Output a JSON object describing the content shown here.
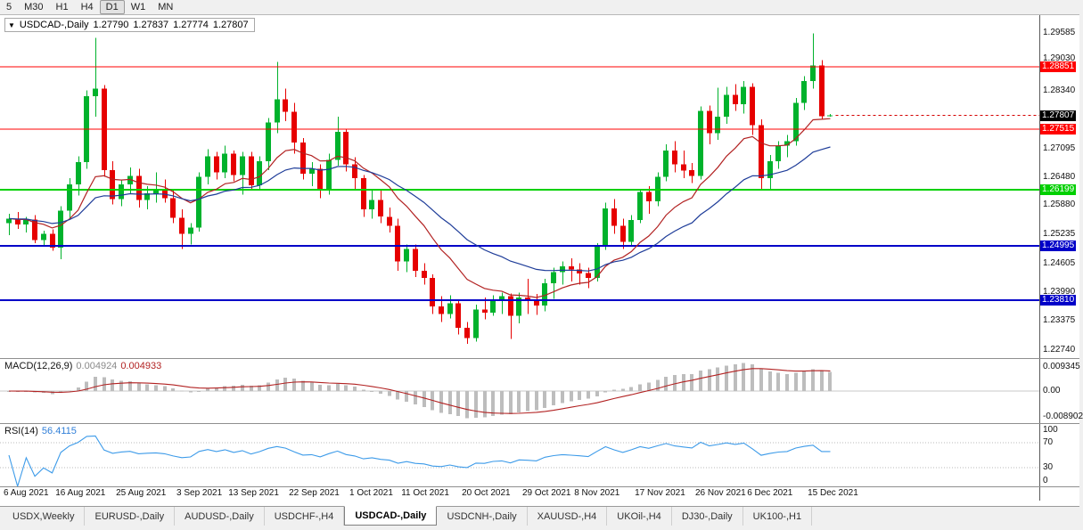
{
  "toolbar": {
    "timeframes": [
      {
        "label": "5",
        "active": false
      },
      {
        "label": "M30",
        "active": false
      },
      {
        "label": "H1",
        "active": false
      },
      {
        "label": "H4",
        "active": false
      },
      {
        "label": "D1",
        "active": true
      },
      {
        "label": "W1",
        "active": false
      },
      {
        "label": "MN",
        "active": false
      }
    ]
  },
  "chart": {
    "title": "USDCAD-,Daily",
    "open": "1.27790",
    "high": "1.27837",
    "low": "1.27774",
    "close": "1.27807"
  },
  "indicators": {
    "macd": {
      "name": "MACD(12,26,9)",
      "value_main": "0.004924",
      "value_signal": "0.004933",
      "axis_labels": [
        "0.009345",
        "0.00",
        "-0.008902"
      ]
    },
    "rsi": {
      "name": "RSI(14)",
      "value": "56.4115",
      "axis_labels": [
        "100",
        "70",
        "30",
        "0"
      ],
      "levels": [
        70,
        30
      ]
    }
  },
  "tabs": [
    {
      "label": "USDX,Weekly",
      "active": false
    },
    {
      "label": "EURUSD-,Daily",
      "active": false
    },
    {
      "label": "AUDUSD-,Daily",
      "active": false
    },
    {
      "label": "USDCHF-,H4",
      "active": false
    },
    {
      "label": "USDCAD-,Daily",
      "active": true
    },
    {
      "label": "USDCNH-,Daily",
      "active": false
    },
    {
      "label": "XAUUSD-,H4",
      "active": false
    },
    {
      "label": "UKOil-,H4",
      "active": false
    },
    {
      "label": "DJ30-,Daily",
      "active": false
    },
    {
      "label": "UK100-,H1",
      "active": false
    }
  ],
  "chart_data": {
    "type": "candlestick",
    "symbol": "USDCAD-",
    "timeframe": "Daily",
    "current_bar": {
      "open": 1.2779,
      "high": 1.27837,
      "low": 1.27774,
      "close": 1.27807
    },
    "current_price": 1.27807,
    "ylim": [
      1.22568,
      1.2997
    ],
    "y_ticks": [
      1.29585,
      1.2903,
      1.2834,
      1.27095,
      1.2648,
      1.2588,
      1.25235,
      1.24605,
      1.2399,
      1.23375,
      1.2274
    ],
    "levels": [
      {
        "price": 1.28851,
        "color": "#ff0000",
        "width": 1
      },
      {
        "price": 1.27515,
        "color": "#ff0000",
        "width": 1
      },
      {
        "price": 1.26199,
        "color": "#00d000",
        "width": 2
      },
      {
        "price": 1.24995,
        "color": "#0000c8",
        "width": 2
      },
      {
        "price": 1.2381,
        "color": "#0000c8",
        "width": 2
      }
    ],
    "x_labels": [
      {
        "bar": 0,
        "text": "6 Aug 2021"
      },
      {
        "bar": 6,
        "text": "16 Aug 2021"
      },
      {
        "bar": 13,
        "text": "25 Aug 2021"
      },
      {
        "bar": 20,
        "text": "3 Sep 2021"
      },
      {
        "bar": 26,
        "text": "13 Sep 2021"
      },
      {
        "bar": 33,
        "text": "22 Sep 2021"
      },
      {
        "bar": 40,
        "text": "1 Oct 2021"
      },
      {
        "bar": 46,
        "text": "11 Oct 2021"
      },
      {
        "bar": 53,
        "text": "20 Oct 2021"
      },
      {
        "bar": 60,
        "text": "29 Oct 2021"
      },
      {
        "bar": 66,
        "text": "8 Nov 2021"
      },
      {
        "bar": 73,
        "text": "17 Nov 2021"
      },
      {
        "bar": 80,
        "text": "26 Nov 2021"
      },
      {
        "bar": 86,
        "text": "6 Dec 2021"
      },
      {
        "bar": 93,
        "text": "15 Dec 2021"
      }
    ],
    "dates": [
      "2021-08-06",
      "2021-08-09",
      "2021-08-10",
      "2021-08-11",
      "2021-08-12",
      "2021-08-13",
      "2021-08-16",
      "2021-08-17",
      "2021-08-18",
      "2021-08-19",
      "2021-08-20",
      "2021-08-23",
      "2021-08-24",
      "2021-08-25",
      "2021-08-26",
      "2021-08-27",
      "2021-08-30",
      "2021-08-31",
      "2021-09-01",
      "2021-09-02",
      "2021-09-03",
      "2021-09-06",
      "2021-09-07",
      "2021-09-08",
      "2021-09-09",
      "2021-09-10",
      "2021-09-13",
      "2021-09-14",
      "2021-09-15",
      "2021-09-16",
      "2021-09-17",
      "2021-09-20",
      "2021-09-21",
      "2021-09-22",
      "2021-09-23",
      "2021-09-24",
      "2021-09-27",
      "2021-09-28",
      "2021-09-29",
      "2021-09-30",
      "2021-10-01",
      "2021-10-04",
      "2021-10-05",
      "2021-10-06",
      "2021-10-07",
      "2021-10-08",
      "2021-10-11",
      "2021-10-12",
      "2021-10-13",
      "2021-10-14",
      "2021-10-15",
      "2021-10-18",
      "2021-10-19",
      "2021-10-20",
      "2021-10-21",
      "2021-10-22",
      "2021-10-25",
      "2021-10-26",
      "2021-10-27",
      "2021-10-28",
      "2021-10-29",
      "2021-11-01",
      "2021-11-02",
      "2021-11-03",
      "2021-11-04",
      "2021-11-05",
      "2021-11-08",
      "2021-11-09",
      "2021-11-10",
      "2021-11-11",
      "2021-11-12",
      "2021-11-15",
      "2021-11-16",
      "2021-11-17",
      "2021-11-18",
      "2021-11-19",
      "2021-11-22",
      "2021-11-23",
      "2021-11-24",
      "2021-11-25",
      "2021-11-26",
      "2021-11-29",
      "2021-11-30",
      "2021-12-01",
      "2021-12-02",
      "2021-12-03",
      "2021-12-06",
      "2021-12-07",
      "2021-12-08",
      "2021-12-09",
      "2021-12-10",
      "2021-12-13",
      "2021-12-14",
      "2021-12-15",
      "2021-12-16",
      "2021-12-17"
    ],
    "candles": [
      [
        1.2548,
        1.2568,
        1.2522,
        1.2558
      ],
      [
        1.2558,
        1.2572,
        1.2536,
        1.2545
      ],
      [
        1.2545,
        1.2562,
        1.2528,
        1.2556
      ],
      [
        1.2556,
        1.2565,
        1.2505,
        1.2512
      ],
      [
        1.2512,
        1.2532,
        1.2498,
        1.2525
      ],
      [
        1.2525,
        1.2535,
        1.2488,
        1.2495
      ],
      [
        1.2495,
        1.2585,
        1.247,
        1.2575
      ],
      [
        1.2575,
        1.2645,
        1.2558,
        1.2632
      ],
      [
        1.2632,
        1.2692,
        1.2608,
        1.268
      ],
      [
        1.268,
        1.2835,
        1.2665,
        1.2822
      ],
      [
        1.2822,
        1.2948,
        1.2778,
        1.2838
      ],
      [
        1.2838,
        1.2846,
        1.2648,
        1.2662
      ],
      [
        1.2662,
        1.2682,
        1.2588,
        1.26
      ],
      [
        1.26,
        1.2642,
        1.2585,
        1.2632
      ],
      [
        1.2632,
        1.2668,
        1.2612,
        1.265
      ],
      [
        1.265,
        1.2665,
        1.2582,
        1.2598
      ],
      [
        1.2598,
        1.2628,
        1.2578,
        1.2612
      ],
      [
        1.2612,
        1.2658,
        1.2592,
        1.262
      ],
      [
        1.262,
        1.2642,
        1.2592,
        1.2602
      ],
      [
        1.2602,
        1.2618,
        1.2548,
        1.256
      ],
      [
        1.256,
        1.2578,
        1.2492,
        1.2525
      ],
      [
        1.2525,
        1.2548,
        1.2502,
        1.2538
      ],
      [
        1.2538,
        1.2658,
        1.253,
        1.2648
      ],
      [
        1.2648,
        1.2708,
        1.2632,
        1.2692
      ],
      [
        1.2692,
        1.2702,
        1.2642,
        1.2658
      ],
      [
        1.2658,
        1.2715,
        1.2645,
        1.2698
      ],
      [
        1.2698,
        1.2705,
        1.2638,
        1.2652
      ],
      [
        1.2652,
        1.2702,
        1.261,
        1.2692
      ],
      [
        1.2692,
        1.2702,
        1.2618,
        1.263
      ],
      [
        1.263,
        1.2692,
        1.2618,
        1.2682
      ],
      [
        1.2682,
        1.2775,
        1.2662,
        1.2765
      ],
      [
        1.2765,
        1.2896,
        1.2742,
        1.2815
      ],
      [
        1.2815,
        1.2838,
        1.2768,
        1.2788
      ],
      [
        1.2788,
        1.2808,
        1.2698,
        1.2722
      ],
      [
        1.2722,
        1.2732,
        1.2642,
        1.2655
      ],
      [
        1.2655,
        1.268,
        1.2628,
        1.2665
      ],
      [
        1.2665,
        1.2675,
        1.2602,
        1.2618
      ],
      [
        1.2618,
        1.2698,
        1.261,
        1.2685
      ],
      [
        1.2685,
        1.2778,
        1.2672,
        1.2745
      ],
      [
        1.2745,
        1.2752,
        1.266,
        1.2675
      ],
      [
        1.2675,
        1.269,
        1.262,
        1.2645
      ],
      [
        1.2645,
        1.2652,
        1.2562,
        1.2578
      ],
      [
        1.2578,
        1.2618,
        1.2558,
        1.2598
      ],
      [
        1.2598,
        1.2622,
        1.2548,
        1.2562
      ],
      [
        1.2562,
        1.2582,
        1.2528,
        1.2542
      ],
      [
        1.2542,
        1.2558,
        1.2445,
        1.2465
      ],
      [
        1.2465,
        1.2502,
        1.2442,
        1.2492
      ],
      [
        1.2492,
        1.2502,
        1.2432,
        1.2445
      ],
      [
        1.2445,
        1.2462,
        1.2415,
        1.243
      ],
      [
        1.243,
        1.2438,
        1.2352,
        1.2368
      ],
      [
        1.2368,
        1.239,
        1.2335,
        1.2352
      ],
      [
        1.2352,
        1.2392,
        1.2342,
        1.2375
      ],
      [
        1.2375,
        1.2382,
        1.2308,
        1.2322
      ],
      [
        1.2322,
        1.2335,
        1.2288,
        1.23
      ],
      [
        1.23,
        1.2372,
        1.2292,
        1.2362
      ],
      [
        1.2362,
        1.2388,
        1.234,
        1.2355
      ],
      [
        1.2355,
        1.2392,
        1.2348,
        1.2382
      ],
      [
        1.2382,
        1.2398,
        1.2352,
        1.239
      ],
      [
        1.239,
        1.2396,
        1.2298,
        1.2348
      ],
      [
        1.2348,
        1.2398,
        1.2332,
        1.2388
      ],
      [
        1.2388,
        1.2428,
        1.2352,
        1.2382
      ],
      [
        1.2382,
        1.2395,
        1.235,
        1.237
      ],
      [
        1.237,
        1.2428,
        1.2358,
        1.2418
      ],
      [
        1.2418,
        1.2452,
        1.2385,
        1.2442
      ],
      [
        1.2442,
        1.2465,
        1.2415,
        1.2455
      ],
      [
        1.2455,
        1.2472,
        1.2422,
        1.2448
      ],
      [
        1.2448,
        1.2462,
        1.2415,
        1.244
      ],
      [
        1.244,
        1.2452,
        1.2408,
        1.243
      ],
      [
        1.243,
        1.2505,
        1.2422,
        1.2498
      ],
      [
        1.2498,
        1.2592,
        1.249,
        1.258
      ],
      [
        1.258,
        1.26,
        1.2525,
        1.2542
      ],
      [
        1.2542,
        1.2558,
        1.2492,
        1.2508
      ],
      [
        1.2508,
        1.2565,
        1.2498,
        1.2555
      ],
      [
        1.2555,
        1.2622,
        1.2548,
        1.2615
      ],
      [
        1.2615,
        1.2628,
        1.2568,
        1.2595
      ],
      [
        1.2595,
        1.2658,
        1.2585,
        1.2648
      ],
      [
        1.2648,
        1.2718,
        1.2638,
        1.2705
      ],
      [
        1.2705,
        1.2725,
        1.2658,
        1.2675
      ],
      [
        1.2675,
        1.2705,
        1.2645,
        1.2662
      ],
      [
        1.2662,
        1.2678,
        1.2635,
        1.265
      ],
      [
        1.265,
        1.28,
        1.2642,
        1.279
      ],
      [
        1.279,
        1.2802,
        1.2718,
        1.2742
      ],
      [
        1.2742,
        1.284,
        1.2728,
        1.2778
      ],
      [
        1.2778,
        1.2842,
        1.2762,
        1.2825
      ],
      [
        1.2825,
        1.2848,
        1.279,
        1.2805
      ],
      [
        1.2805,
        1.2855,
        1.2785,
        1.2842
      ],
      [
        1.2842,
        1.285,
        1.2738,
        1.276
      ],
      [
        1.276,
        1.2772,
        1.2622,
        1.2645
      ],
      [
        1.2645,
        1.2695,
        1.2618,
        1.2682
      ],
      [
        1.2682,
        1.2725,
        1.2665,
        1.2715
      ],
      [
        1.2715,
        1.2738,
        1.269,
        1.2725
      ],
      [
        1.2725,
        1.2818,
        1.2715,
        1.2808
      ],
      [
        1.2808,
        1.2865,
        1.2792,
        1.2855
      ],
      [
        1.2855,
        1.2958,
        1.2838,
        1.2888
      ],
      [
        1.2888,
        1.29,
        1.2772,
        1.2779
      ],
      [
        1.2779,
        1.27837,
        1.27774,
        1.27807
      ]
    ],
    "moving_averages": [
      {
        "period": 12,
        "color": "#b22222"
      },
      {
        "period": 26,
        "color": "#1f3d99"
      }
    ],
    "macd": {
      "fast": 12,
      "slow": 26,
      "signal": 9
    },
    "rsi_period": 14,
    "colors": {
      "bull": "#00b22c",
      "bear": "#e60000",
      "macd_hist": "#bdbdbd",
      "macd_signal": "#b22222",
      "rsi": "#3d9be9",
      "bid_line": "#d40000"
    }
  }
}
